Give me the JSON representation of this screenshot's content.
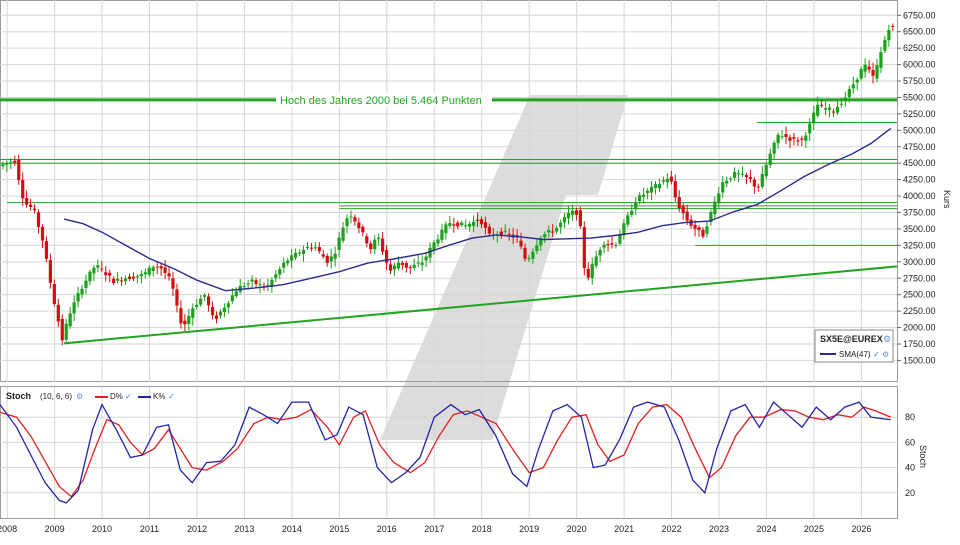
{
  "colors": {
    "candle_up": "#1aa01a",
    "candle_down": "#d01010",
    "sma": "#2b2b8c",
    "support_line": "#22a322",
    "stoch_d": "#e02020",
    "stoch_k": "#2323a8",
    "grid": "#d6d6d6",
    "axis_text": "#222222",
    "watermark": "#d9d9d9"
  },
  "chart_data": [
    {
      "type": "candlestick",
      "symbol_label": "SX5E@EUREX",
      "legend_sma_label": "SMA(47)",
      "annotation": "Hoch des Jahres 2000 bei 5.464 Punkten",
      "ylabel": "Kurs",
      "y_ticks": [
        "6750.00",
        "6500.00",
        "6250.00",
        "6000.00",
        "5750.00",
        "5500.00",
        "5250.00",
        "5000.00",
        "4750.00",
        "4500.00",
        "4250.00",
        "4000.00",
        "3750.00",
        "3500.00",
        "3250.00",
        "3000.00",
        "2750.00",
        "2500.00",
        "2250.00",
        "2000.00",
        "1750.00",
        "1500.00"
      ],
      "ylim": [
        1400,
        6800
      ],
      "x_ticks": [
        "2008",
        "2009",
        "2010",
        "2011",
        "2012",
        "2013",
        "2014",
        "2015",
        "2016",
        "2017",
        "2018",
        "2019",
        "2020",
        "2021",
        "2022",
        "2023",
        "2024",
        "2025",
        "2026"
      ],
      "xlim": [
        2007.85,
        2026.75
      ],
      "grid": true,
      "legend_position": "bottom-right",
      "price_path": [
        [
          2007.85,
          4450
        ],
        [
          2008.2,
          4550
        ],
        [
          2008.4,
          3900
        ],
        [
          2008.6,
          3800
        ],
        [
          2008.8,
          3300
        ],
        [
          2009.0,
          2500
        ],
        [
          2009.15,
          2000
        ],
        [
          2009.2,
          1810
        ],
        [
          2009.35,
          2200
        ],
        [
          2009.6,
          2600
        ],
        [
          2009.9,
          2950
        ],
        [
          2010.0,
          2900
        ],
        [
          2010.3,
          2700
        ],
        [
          2010.5,
          2750
        ],
        [
          2010.9,
          2800
        ],
        [
          2011.15,
          2950
        ],
        [
          2011.3,
          2900
        ],
        [
          2011.5,
          2700
        ],
        [
          2011.65,
          2200
        ],
        [
          2011.75,
          2000
        ],
        [
          2011.95,
          2300
        ],
        [
          2012.2,
          2500
        ],
        [
          2012.4,
          2100
        ],
        [
          2012.6,
          2300
        ],
        [
          2012.9,
          2600
        ],
        [
          2013.2,
          2700
        ],
        [
          2013.5,
          2600
        ],
        [
          2013.9,
          3000
        ],
        [
          2014.3,
          3200
        ],
        [
          2014.5,
          3250
        ],
        [
          2014.8,
          3000
        ],
        [
          2014.95,
          3150
        ],
        [
          2015.1,
          3500
        ],
        [
          2015.25,
          3750
        ],
        [
          2015.4,
          3600
        ],
        [
          2015.7,
          3200
        ],
        [
          2015.85,
          3400
        ],
        [
          2016.1,
          2850
        ],
        [
          2016.3,
          3000
        ],
        [
          2016.5,
          2900
        ],
        [
          2016.8,
          3000
        ],
        [
          2017.0,
          3250
        ],
        [
          2017.35,
          3600
        ],
        [
          2017.7,
          3550
        ],
        [
          2018.0,
          3650
        ],
        [
          2018.2,
          3400
        ],
        [
          2018.5,
          3450
        ],
        [
          2018.8,
          3350
        ],
        [
          2018.98,
          3000
        ],
        [
          2019.3,
          3400
        ],
        [
          2019.6,
          3500
        ],
        [
          2019.9,
          3750
        ],
        [
          2020.05,
          3750
        ],
        [
          2020.18,
          3300
        ],
        [
          2020.22,
          2650
        ],
        [
          2020.4,
          3000
        ],
        [
          2020.6,
          3300
        ],
        [
          2020.85,
          3250
        ],
        [
          2021.0,
          3500
        ],
        [
          2021.3,
          3950
        ],
        [
          2021.6,
          4100
        ],
        [
          2021.9,
          4250
        ],
        [
          2022.0,
          4300
        ],
        [
          2022.15,
          3900
        ],
        [
          2022.4,
          3600
        ],
        [
          2022.7,
          3400
        ],
        [
          2022.9,
          3800
        ],
        [
          2023.1,
          4200
        ],
        [
          2023.4,
          4350
        ],
        [
          2023.7,
          4250
        ],
        [
          2023.85,
          4100
        ],
        [
          2024.1,
          4600
        ],
        [
          2024.3,
          4950
        ],
        [
          2024.6,
          4850
        ],
        [
          2024.8,
          4850
        ],
        [
          2025.0,
          5150
        ],
        [
          2025.1,
          5400
        ],
        [
          2025.2,
          5350
        ],
        [
          2025.45,
          5300
        ],
        [
          2025.7,
          5500
        ],
        [
          2025.95,
          5800
        ],
        [
          2026.1,
          6000
        ],
        [
          2026.3,
          5800
        ],
        [
          2026.5,
          6300
        ],
        [
          2026.62,
          6560
        ]
      ],
      "sma_path": [
        [
          2009.2,
          3650
        ],
        [
          2009.6,
          3580
        ],
        [
          2010.0,
          3450
        ],
        [
          2010.5,
          3250
        ],
        [
          2011.0,
          3050
        ],
        [
          2011.5,
          2900
        ],
        [
          2012.0,
          2720
        ],
        [
          2012.6,
          2560
        ],
        [
          2013.2,
          2600
        ],
        [
          2013.8,
          2650
        ],
        [
          2014.4,
          2750
        ],
        [
          2015.0,
          2850
        ],
        [
          2015.6,
          2980
        ],
        [
          2016.2,
          3050
        ],
        [
          2016.8,
          3130
        ],
        [
          2017.3,
          3250
        ],
        [
          2017.8,
          3360
        ],
        [
          2018.3,
          3410
        ],
        [
          2018.8,
          3380
        ],
        [
          2019.3,
          3340
        ],
        [
          2019.8,
          3350
        ],
        [
          2020.3,
          3360
        ],
        [
          2020.8,
          3400
        ],
        [
          2021.3,
          3450
        ],
        [
          2021.8,
          3550
        ],
        [
          2022.3,
          3600
        ],
        [
          2022.8,
          3620
        ],
        [
          2023.3,
          3760
        ],
        [
          2023.8,
          3870
        ],
        [
          2024.3,
          4080
        ],
        [
          2024.8,
          4300
        ],
        [
          2025.3,
          4480
        ],
        [
          2025.8,
          4640
        ],
        [
          2026.2,
          4800
        ],
        [
          2026.62,
          5030
        ]
      ],
      "horizontal_lines": [
        {
          "y": 5464,
          "x_from": 2007.85,
          "x_to": 2026.75,
          "weight": "thick"
        },
        {
          "y": 4557,
          "x_from": 2007.85,
          "x_to": 2026.75,
          "weight": "thin"
        },
        {
          "y": 4500,
          "x_from": 2007.85,
          "x_to": 2026.75,
          "weight": "thin"
        },
        {
          "y": 3900,
          "x_from": 2008.0,
          "x_to": 2026.75,
          "weight": "thin"
        },
        {
          "y": 3850,
          "x_from": 2015.0,
          "x_to": 2026.75,
          "weight": "thin"
        },
        {
          "y": 3810,
          "x_from": 2015.0,
          "x_to": 2026.75,
          "weight": "thin"
        },
        {
          "y": 3250,
          "x_from": 2022.5,
          "x_to": 2026.75,
          "weight": "thin"
        },
        {
          "y": 5120,
          "x_from": 2023.8,
          "x_to": 2026.75,
          "weight": "thin"
        }
      ],
      "trend_line": {
        "from": [
          2009.2,
          1760
        ],
        "to": [
          2026.75,
          2930
        ]
      }
    },
    {
      "type": "line",
      "title": "Stoch",
      "params": "(10, 6, 6)",
      "legend": [
        "D%",
        "K%"
      ],
      "ylabel": "Stoch",
      "y_ticks": [
        "80",
        "60",
        "40",
        "20"
      ],
      "ylim": [
        0,
        100
      ],
      "series": [
        {
          "name": "D%",
          "values": [
            [
              2007.85,
              84
            ],
            [
              2008.2,
              80
            ],
            [
              2008.5,
              65
            ],
            [
              2008.8,
              45
            ],
            [
              2009.1,
              25
            ],
            [
              2009.35,
              17
            ],
            [
              2009.6,
              30
            ],
            [
              2009.85,
              55
            ],
            [
              2010.1,
              78
            ],
            [
              2010.35,
              74
            ],
            [
              2010.6,
              60
            ],
            [
              2010.85,
              50
            ],
            [
              2011.1,
              55
            ],
            [
              2011.4,
              70
            ],
            [
              2011.65,
              55
            ],
            [
              2011.9,
              40
            ],
            [
              2012.2,
              38
            ],
            [
              2012.55,
              45
            ],
            [
              2012.85,
              55
            ],
            [
              2013.2,
              75
            ],
            [
              2013.5,
              80
            ],
            [
              2013.8,
              78
            ],
            [
              2014.1,
              80
            ],
            [
              2014.4,
              86
            ],
            [
              2014.75,
              72
            ],
            [
              2015.0,
              58
            ],
            [
              2015.3,
              80
            ],
            [
              2015.55,
              85
            ],
            [
              2015.85,
              58
            ],
            [
              2016.15,
              44
            ],
            [
              2016.5,
              36
            ],
            [
              2016.8,
              44
            ],
            [
              2017.1,
              65
            ],
            [
              2017.4,
              82
            ],
            [
              2017.7,
              85
            ],
            [
              2018.0,
              80
            ],
            [
              2018.3,
              75
            ],
            [
              2018.7,
              52
            ],
            [
              2019.0,
              36
            ],
            [
              2019.3,
              40
            ],
            [
              2019.6,
              62
            ],
            [
              2019.9,
              80
            ],
            [
              2020.2,
              82
            ],
            [
              2020.45,
              58
            ],
            [
              2020.7,
              45
            ],
            [
              2021.0,
              50
            ],
            [
              2021.3,
              75
            ],
            [
              2021.6,
              88
            ],
            [
              2021.9,
              90
            ],
            [
              2022.2,
              80
            ],
            [
              2022.5,
              55
            ],
            [
              2022.8,
              32
            ],
            [
              2023.05,
              40
            ],
            [
              2023.35,
              65
            ],
            [
              2023.65,
              80
            ],
            [
              2023.95,
              80
            ],
            [
              2024.3,
              86
            ],
            [
              2024.6,
              85
            ],
            [
              2024.9,
              80
            ],
            [
              2025.2,
              78
            ],
            [
              2025.5,
              82
            ],
            [
              2025.8,
              80
            ],
            [
              2026.05,
              88
            ],
            [
              2026.3,
              85
            ],
            [
              2026.62,
              80
            ]
          ]
        },
        {
          "name": "K%",
          "values": [
            [
              2007.85,
              90
            ],
            [
              2008.2,
              72
            ],
            [
              2008.5,
              50
            ],
            [
              2008.8,
              28
            ],
            [
              2009.1,
              14
            ],
            [
              2009.25,
              12
            ],
            [
              2009.5,
              22
            ],
            [
              2009.8,
              70
            ],
            [
              2010.0,
              90
            ],
            [
              2010.3,
              70
            ],
            [
              2010.6,
              48
            ],
            [
              2010.85,
              50
            ],
            [
              2011.15,
              72
            ],
            [
              2011.4,
              74
            ],
            [
              2011.65,
              38
            ],
            [
              2011.9,
              28
            ],
            [
              2012.2,
              44
            ],
            [
              2012.5,
              45
            ],
            [
              2012.8,
              58
            ],
            [
              2013.1,
              88
            ],
            [
              2013.4,
              82
            ],
            [
              2013.7,
              75
            ],
            [
              2014.0,
              92
            ],
            [
              2014.35,
              92
            ],
            [
              2014.7,
              62
            ],
            [
              2014.95,
              66
            ],
            [
              2015.2,
              88
            ],
            [
              2015.5,
              82
            ],
            [
              2015.8,
              40
            ],
            [
              2016.1,
              28
            ],
            [
              2016.4,
              36
            ],
            [
              2016.7,
              48
            ],
            [
              2017.0,
              80
            ],
            [
              2017.35,
              90
            ],
            [
              2017.65,
              82
            ],
            [
              2017.95,
              86
            ],
            [
              2018.3,
              65
            ],
            [
              2018.65,
              35
            ],
            [
              2018.95,
              25
            ],
            [
              2019.2,
              55
            ],
            [
              2019.5,
              85
            ],
            [
              2019.8,
              90
            ],
            [
              2020.1,
              80
            ],
            [
              2020.35,
              40
            ],
            [
              2020.6,
              42
            ],
            [
              2020.9,
              62
            ],
            [
              2021.2,
              88
            ],
            [
              2021.5,
              92
            ],
            [
              2021.85,
              88
            ],
            [
              2022.15,
              62
            ],
            [
              2022.45,
              30
            ],
            [
              2022.7,
              20
            ],
            [
              2022.95,
              55
            ],
            [
              2023.25,
              85
            ],
            [
              2023.55,
              90
            ],
            [
              2023.85,
              72
            ],
            [
              2024.15,
              92
            ],
            [
              2024.45,
              82
            ],
            [
              2024.75,
              72
            ],
            [
              2025.05,
              88
            ],
            [
              2025.35,
              78
            ],
            [
              2025.65,
              88
            ],
            [
              2025.95,
              92
            ],
            [
              2026.2,
              80
            ],
            [
              2026.62,
              78
            ]
          ]
        }
      ]
    }
  ]
}
